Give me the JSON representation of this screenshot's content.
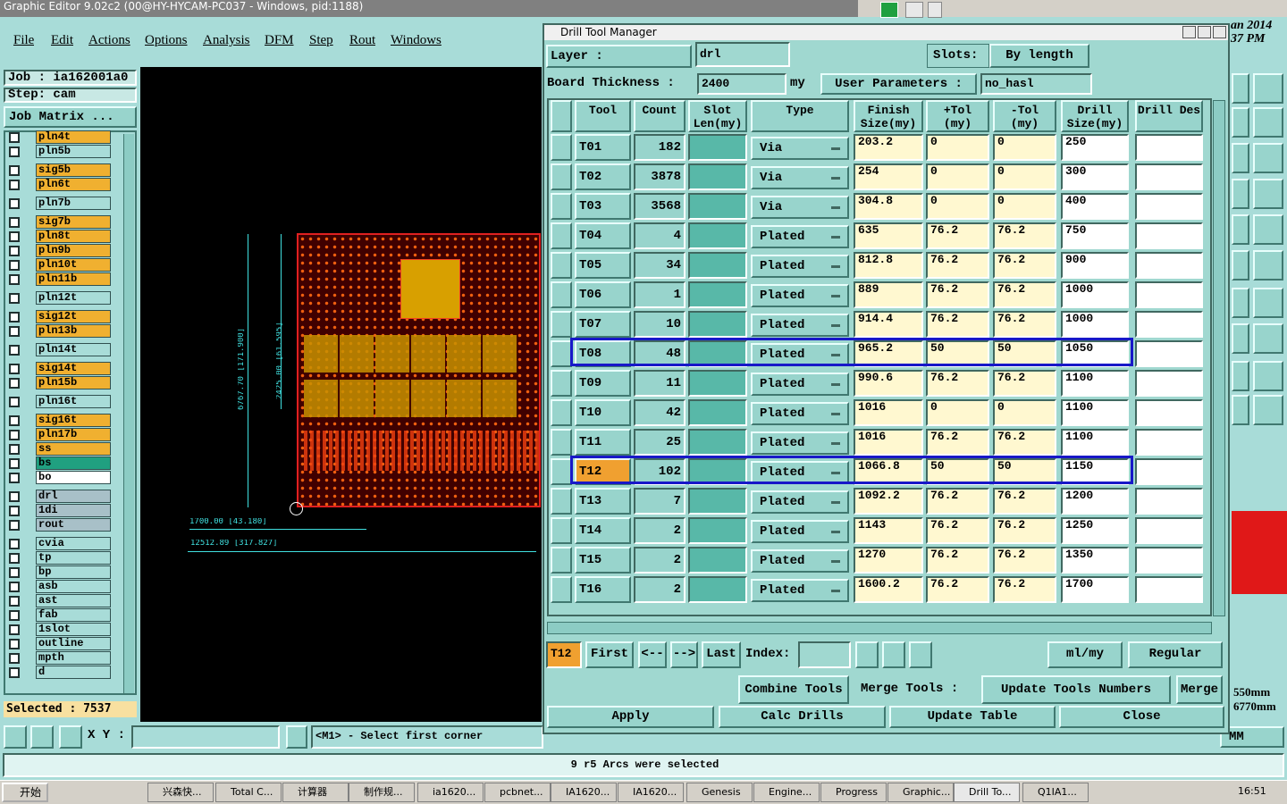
{
  "window_title": "Graphic Editor 9.02c2 (00@HY-HYCAM-PC037 - Windows, pid:1188)",
  "menu": [
    "File",
    "Edit",
    "Actions",
    "Options",
    "Analysis",
    "DFM",
    "Step",
    "Rout",
    "Windows"
  ],
  "job": {
    "job": "Job : ia162001a0",
    "step": "Step: cam",
    "matrix": "Job Matrix ..."
  },
  "layer_groups": [
    [
      {
        "name": "pln4t",
        "color": "#f0b030"
      },
      {
        "name": "pln5b",
        "color": "#a8dcd8"
      }
    ],
    [
      {
        "name": "sig5b",
        "color": "#f0b030"
      },
      {
        "name": "pln6t",
        "color": "#f0b030"
      }
    ],
    [
      {
        "name": "pln7b",
        "color": "#a8dcd8"
      }
    ],
    [
      {
        "name": "sig7b",
        "color": "#f0b030"
      },
      {
        "name": "pln8t",
        "color": "#f0b030"
      },
      {
        "name": "pln9b",
        "color": "#f0b030"
      },
      {
        "name": "pln10t",
        "color": "#f0b030"
      },
      {
        "name": "pln11b",
        "color": "#f0b030"
      }
    ],
    [
      {
        "name": "pln12t",
        "color": "#a8dcd8"
      }
    ],
    [
      {
        "name": "sig12t",
        "color": "#f0b030"
      },
      {
        "name": "pln13b",
        "color": "#f0b030"
      }
    ],
    [
      {
        "name": "pln14t",
        "color": "#a8dcd8"
      }
    ],
    [
      {
        "name": "sig14t",
        "color": "#f0b030"
      },
      {
        "name": "pln15b",
        "color": "#f0b030"
      }
    ],
    [
      {
        "name": "pln16t",
        "color": "#a8dcd8"
      }
    ],
    [
      {
        "name": "sig16t",
        "color": "#f0b030"
      },
      {
        "name": "pln17b",
        "color": "#f0b030"
      },
      {
        "name": "ss",
        "color": "#f0b030"
      },
      {
        "name": "bs",
        "color": "#20a080"
      },
      {
        "name": "bo",
        "color": "#ffffff"
      }
    ],
    [
      {
        "name": "drl",
        "color": "#a8c0c8"
      },
      {
        "name": "1di",
        "color": "#a8c0c8"
      },
      {
        "name": "rout",
        "color": "#a8c0c8"
      }
    ],
    [
      {
        "name": "cvia",
        "color": "#a8dcd8"
      },
      {
        "name": "tp",
        "color": "#a8dcd8"
      },
      {
        "name": "bp",
        "color": "#a8dcd8"
      },
      {
        "name": "asb",
        "color": "#a8dcd8"
      },
      {
        "name": "ast",
        "color": "#a8dcd8"
      },
      {
        "name": "fab",
        "color": "#a8dcd8"
      },
      {
        "name": "1slot",
        "color": "#a8dcd8"
      },
      {
        "name": "outline",
        "color": "#a8dcd8"
      },
      {
        "name": "mpth",
        "color": "#a8dcd8"
      },
      {
        "name": "d",
        "color": "#a8dcd8"
      }
    ]
  ],
  "selected": "Selected : 7537",
  "canvas_dims": {
    "height_outer": "6767.70 [171.900]",
    "height_inner": "2425.00 [61.595]",
    "width_inner": "1700.00 [43.180]",
    "width_outer": "12512.89 [317.827]"
  },
  "coord_label": "X Y :",
  "prompt": "<M1> - Select first corner",
  "status": "9 r5 Arcs were selected",
  "right_strip": {
    "date": "an 2014",
    "time": "37 PM",
    "dim1": "550mm",
    "dim2": "6770mm",
    "unit": "MM"
  },
  "taskbar": {
    "start": "开始",
    "items": [
      "兴森快...",
      "Total C...",
      "计算器",
      "制作规...",
      "ia1620...",
      "pcbnet...",
      "IA1620...",
      "IA1620...",
      "Genesis",
      "Engine...",
      "Progress",
      "Graphic...",
      "Drill To...",
      "Q1IA1..."
    ],
    "clock": "16:51"
  },
  "dialog": {
    "title": "Drill Tool Manager",
    "layer_label": "Layer        :",
    "layer": "drl",
    "slots_label": "Slots:",
    "slots": "By length",
    "thickness_label": "Board Thickness  :",
    "thickness": "2400",
    "thickness_unit": "my",
    "user_params_label": "User Parameters :",
    "user_params": "no_hasl",
    "headers": [
      "Tool",
      "Count",
      "Slot Len(my)",
      "Type",
      "Finish Size(my)",
      "+Tol (my)",
      "-Tol (my)",
      "Drill Size(my)",
      "Drill Des"
    ],
    "rows": [
      {
        "tool": "T01",
        "count": "182",
        "type": "Via",
        "finish": "203.2",
        "ptol": "0",
        "ntol": "0",
        "drill": "250"
      },
      {
        "tool": "T02",
        "count": "3878",
        "type": "Via",
        "finish": "254",
        "ptol": "0",
        "ntol": "0",
        "drill": "300"
      },
      {
        "tool": "T03",
        "count": "3568",
        "type": "Via",
        "finish": "304.8",
        "ptol": "0",
        "ntol": "0",
        "drill": "400"
      },
      {
        "tool": "T04",
        "count": "4",
        "type": "Plated",
        "finish": "635",
        "ptol": "76.2",
        "ntol": "76.2",
        "drill": "750"
      },
      {
        "tool": "T05",
        "count": "34",
        "type": "Plated",
        "finish": "812.8",
        "ptol": "76.2",
        "ntol": "76.2",
        "drill": "900"
      },
      {
        "tool": "T06",
        "count": "1",
        "type": "Plated",
        "finish": "889",
        "ptol": "76.2",
        "ntol": "76.2",
        "drill": "1000"
      },
      {
        "tool": "T07",
        "count": "10",
        "type": "Plated",
        "finish": "914.4",
        "ptol": "76.2",
        "ntol": "76.2",
        "drill": "1000"
      },
      {
        "tool": "T08",
        "count": "48",
        "type": "Plated",
        "finish": "965.2",
        "ptol": "50",
        "ntol": "50",
        "drill": "1050",
        "outlined": true
      },
      {
        "tool": "T09",
        "count": "11",
        "type": "Plated",
        "finish": "990.6",
        "ptol": "76.2",
        "ntol": "76.2",
        "drill": "1100"
      },
      {
        "tool": "T10",
        "count": "42",
        "type": "Plated",
        "finish": "1016",
        "ptol": "0",
        "ntol": "0",
        "drill": "1100"
      },
      {
        "tool": "T11",
        "count": "25",
        "type": "Plated",
        "finish": "1016",
        "ptol": "76.2",
        "ntol": "76.2",
        "drill": "1100"
      },
      {
        "tool": "T12",
        "count": "102",
        "type": "Plated",
        "finish": "1066.8",
        "ptol": "50",
        "ntol": "50",
        "drill": "1150",
        "outlined": true,
        "current": true
      },
      {
        "tool": "T13",
        "count": "7",
        "type": "Plated",
        "finish": "1092.2",
        "ptol": "76.2",
        "ntol": "76.2",
        "drill": "1200"
      },
      {
        "tool": "T14",
        "count": "2",
        "type": "Plated",
        "finish": "1143",
        "ptol": "76.2",
        "ntol": "76.2",
        "drill": "1250"
      },
      {
        "tool": "T15",
        "count": "2",
        "type": "Plated",
        "finish": "1270",
        "ptol": "76.2",
        "ntol": "76.2",
        "drill": "1350"
      },
      {
        "tool": "T16",
        "count": "2",
        "type": "Plated",
        "finish": "1600.2",
        "ptol": "76.2",
        "ntol": "76.2",
        "drill": "1700"
      }
    ],
    "nav": {
      "current": "T12",
      "first": "First",
      "prev": "<--",
      "next": "-->",
      "last": "Last",
      "index_label": "Index:",
      "units": "ml/my",
      "mode": "Regular"
    },
    "actions": {
      "combine": "Combine Tools",
      "merge_label": "Merge Tools :",
      "update_numbers": "Update Tools Numbers",
      "merge": "Merge",
      "apply": "Apply",
      "calc": "Calc Drills",
      "update_table": "Update Table",
      "close": "Close"
    }
  }
}
